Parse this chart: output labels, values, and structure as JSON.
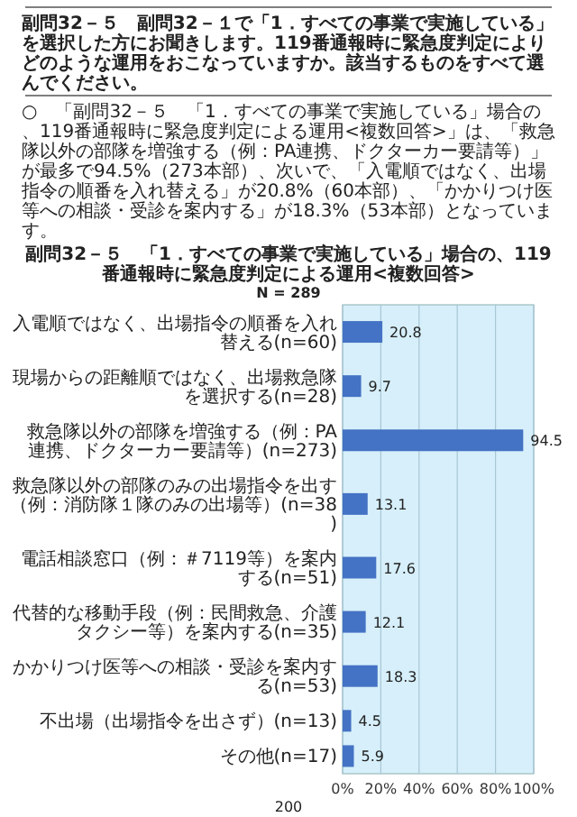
{
  "chart_data": {
    "type": "bar",
    "orientation": "horizontal",
    "title": "副問32－５　「1．すべての事業で実施している」場合の、119番通報時に緊急度判定による運用<複数回答>",
    "subtitle": "N = 289",
    "categories": [
      "入電順ではなく、出場指令の順番を入れ替える(n=60)",
      "現場からの距離順ではなく、出場救急隊を選択する(n=28)",
      "救急隊以外の部隊を増強する（例：PA連携、ドクターカー要請等）(n=273)",
      "救急隊以外の部隊のみの出場指令を出す（例：消防隊１隊のみの出場等）(n=38)",
      "電話相談窓口（例：＃7119等）を案内する(n=51)",
      "代替的な移動手段（例：民間救急、介護タクシー等）を案内する(n=35)",
      "かかりつけ医等への相談・受診を案内する(n=53)",
      "不出場（出場指令を出さず）(n=13)",
      "その他(n=17)"
    ],
    "values": [
      20.8,
      9.7,
      94.5,
      13.1,
      17.6,
      12.1,
      18.3,
      4.5,
      5.9
    ],
    "color": "#4472c4",
    "data_labels": true,
    "grid": "x",
    "xlim": [
      0,
      100
    ],
    "xticks": [
      {
        "value": 0,
        "label": "0%"
      },
      {
        "value": 20,
        "label": "20%"
      },
      {
        "value": 40,
        "label": "40%"
      },
      {
        "value": 60,
        "label": "60%"
      },
      {
        "value": 80,
        "label": "80%"
      },
      {
        "value": 100,
        "label": "100%"
      }
    ],
    "annotations": [
      "副問32－５　副問32－１で「1．すべての事業で実施している」を選択した方にお聞きします。119番通報時に緊急度判定によりどのような運用をおこなっていますか。該当するものをすべて選んでください。",
      "○　「副問32－５　「1．すべての事業で実施している」場合の、119番通報時に緊急度判定による運用<複数回答>」は、「救急隊以外の部隊を増強する（例：PA連携、ドクターカー要請等）」が最多で94.5%（273本部）、次いで、「入電順ではなく、出場指令の順番を入れ替える」が20.8%（60本部）、「かかりつけ医等への相談・受診を案内する」が18.3%（53本部）となっています。",
      "200"
    ]
  }
}
